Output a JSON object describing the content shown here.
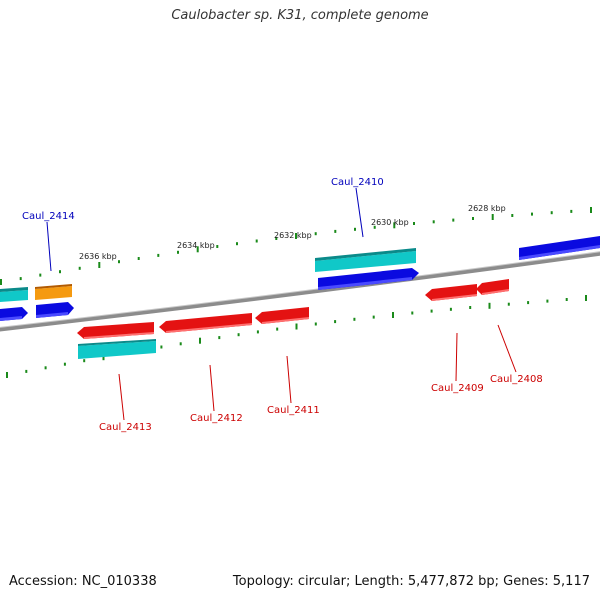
{
  "title": "Caulobacter sp. K31, complete genome",
  "footer": {
    "accession": "Accession: NC_010338",
    "summary": "Topology: circular; Length: 5,477,872 bp; Genes: 5,117"
  },
  "colors": {
    "backbone": "#8a8a8a",
    "tick": "#1a8a1a",
    "gene_red": "#e01010",
    "gene_blue": "#0a0ae0",
    "gene_cyan": "#10c8c8",
    "gene_orange": "#f08a00",
    "label_red": "#cc0000",
    "label_blue": "#0000bb"
  },
  "ticks": [
    {
      "label": "2636 kbp"
    },
    {
      "label": "2634 kbp"
    },
    {
      "label": "2632 kbp"
    },
    {
      "label": "2630 kbp"
    },
    {
      "label": "2628 kbp"
    }
  ],
  "genes": [
    {
      "label": "Caul_2414",
      "color": "gene_orange",
      "label_color": "label_blue"
    },
    {
      "label": "Caul_2413",
      "color": "gene_red",
      "label_color": "label_red"
    },
    {
      "label": "Caul_2412",
      "color": "gene_red",
      "label_color": "label_red"
    },
    {
      "label": "Caul_2411",
      "color": "gene_red",
      "label_color": "label_red"
    },
    {
      "label": "Caul_2410",
      "color": "gene_cyan",
      "label_color": "label_blue"
    },
    {
      "label": "Caul_2409",
      "color": "gene_red",
      "label_color": "label_red"
    },
    {
      "label": "Caul_2408",
      "color": "gene_red",
      "label_color": "label_red"
    }
  ]
}
